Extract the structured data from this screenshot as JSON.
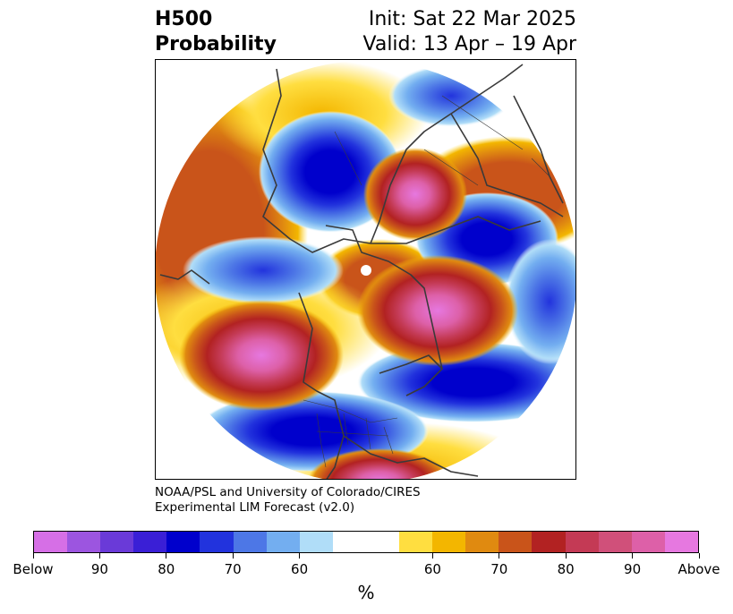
{
  "header": {
    "left_line1": "H500",
    "left_line2": "Probability",
    "right_line1": "Init: Sat 22 Mar 2025",
    "right_line2": "Valid: 13 Apr – 19 Apr"
  },
  "credit": {
    "line1": "NOAA/PSL and University of Colorado/CIRES",
    "line2": "Experimental LIM Forecast (v2.0)"
  },
  "colorbar": {
    "unit": "%",
    "colors": [
      "#d66fe6",
      "#9c55e0",
      "#6a3ad8",
      "#3a1fd6",
      "#0000cc",
      "#2233dd",
      "#4d77e6",
      "#73aef0",
      "#b0ddf8",
      "#ffffff",
      "#ffde40",
      "#f3b600",
      "#e08a10",
      "#c9541a",
      "#b22222",
      "#c43a55",
      "#d0507a",
      "#dd60a8",
      "#e678e0"
    ],
    "tick_labels": [
      "Below",
      "90",
      "80",
      "70",
      "60",
      "60",
      "70",
      "80",
      "90",
      "Above"
    ]
  }
}
